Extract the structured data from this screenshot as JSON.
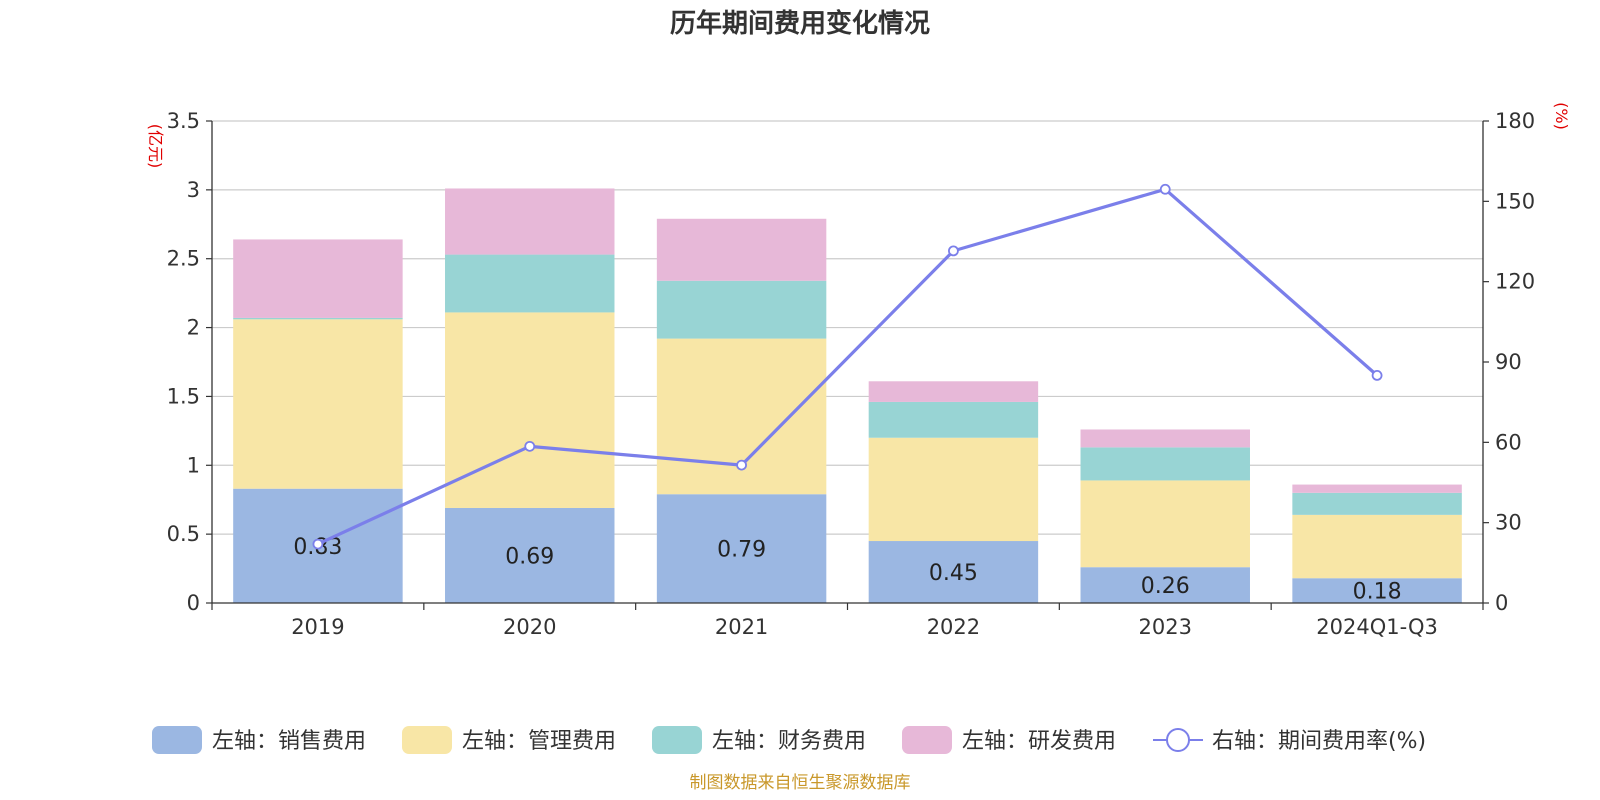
{
  "chart_data": {
    "type": "bar",
    "stacked": true,
    "title": "历年期间费用变化情况",
    "categories": [
      "2019",
      "2020",
      "2021",
      "2022",
      "2023",
      "2024Q1-Q3"
    ],
    "left_axis": {
      "unit": "(亿元)",
      "ylim": [
        0,
        3.5
      ],
      "ticks": [
        "0",
        "0.5",
        "1",
        "1.5",
        "2",
        "2.5",
        "3",
        "3.5"
      ]
    },
    "right_axis": {
      "unit": "(%)",
      "ylim": [
        0,
        180
      ],
      "ticks": [
        "0",
        "30",
        "60",
        "90",
        "120",
        "150",
        "180"
      ]
    },
    "series": [
      {
        "name": "左轴：销售费用",
        "axis": "left",
        "type": "bar",
        "color": "#9bb7e2",
        "values": [
          0.83,
          0.69,
          0.79,
          0.45,
          0.26,
          0.18
        ]
      },
      {
        "name": "左轴：管理费用",
        "axis": "left",
        "type": "bar",
        "color": "#f8e6a6",
        "values": [
          1.23,
          1.42,
          1.13,
          0.75,
          0.63,
          0.46
        ]
      },
      {
        "name": "左轴：财务费用",
        "axis": "left",
        "type": "bar",
        "color": "#98d4d4",
        "values": [
          0.01,
          0.42,
          0.42,
          0.26,
          0.24,
          0.16
        ]
      },
      {
        "name": "左轴：研发费用",
        "axis": "left",
        "type": "bar",
        "color": "#e7b8d8",
        "values": [
          0.57,
          0.48,
          0.45,
          0.15,
          0.13,
          0.06
        ]
      },
      {
        "name": "右轴：期间费用率(%)",
        "axis": "right",
        "type": "line",
        "color": "#7b7fea",
        "values": [
          22,
          58.5,
          51.5,
          131.5,
          154.5,
          85
        ]
      }
    ],
    "data_labels": [
      "0.83",
      "0.69",
      "0.79",
      "0.45",
      "0.26",
      "0.18"
    ],
    "grid": true,
    "legend_position": "bottom"
  },
  "source": "制图数据来自恒生聚源数据库"
}
